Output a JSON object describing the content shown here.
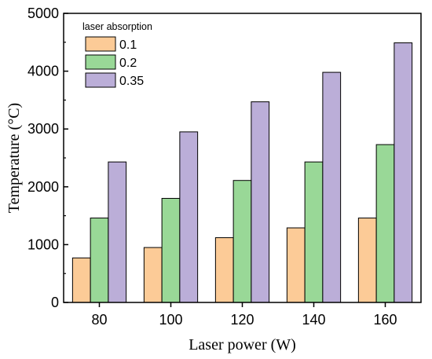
{
  "chart_data": {
    "type": "bar",
    "xlabel": "Laser power (W)",
    "ylabel": "Temperature (°C)",
    "categories": [
      "80",
      "100",
      "120",
      "140",
      "160"
    ],
    "ylim": [
      0,
      5000
    ],
    "yticks": [
      "0",
      "1000",
      "2000",
      "3000",
      "4000",
      "5000"
    ],
    "legend_title": "laser absorption",
    "legend_position": "top-left",
    "grid": false,
    "series": [
      {
        "name": "0.1",
        "color": "#FCCB97",
        "values": [
          770,
          950,
          1120,
          1290,
          1460
        ]
      },
      {
        "name": "0.2",
        "color": "#99D897",
        "values": [
          1460,
          1800,
          2110,
          2430,
          2730
        ]
      },
      {
        "name": "0.35",
        "color": "#BBAED8",
        "values": [
          2430,
          2950,
          3470,
          3980,
          4490
        ]
      }
    ]
  }
}
